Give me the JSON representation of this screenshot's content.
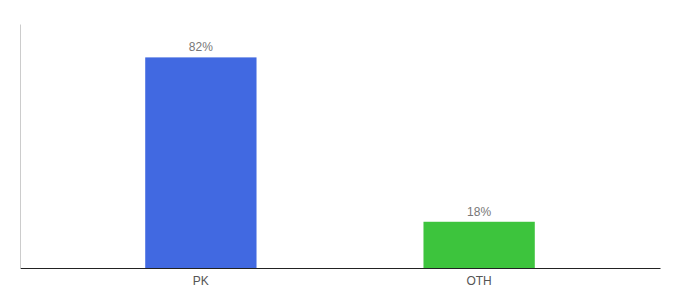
{
  "chart_data": {
    "type": "bar",
    "categories": [
      "PK",
      "OTH"
    ],
    "values": [
      82,
      18
    ],
    "value_labels": [
      "82%",
      "18%"
    ],
    "colors": [
      "#4169e1",
      "#3dc43d"
    ],
    "ylim": [
      0,
      95
    ],
    "data_labels": true,
    "tick_labels": "x",
    "grid": false
  }
}
